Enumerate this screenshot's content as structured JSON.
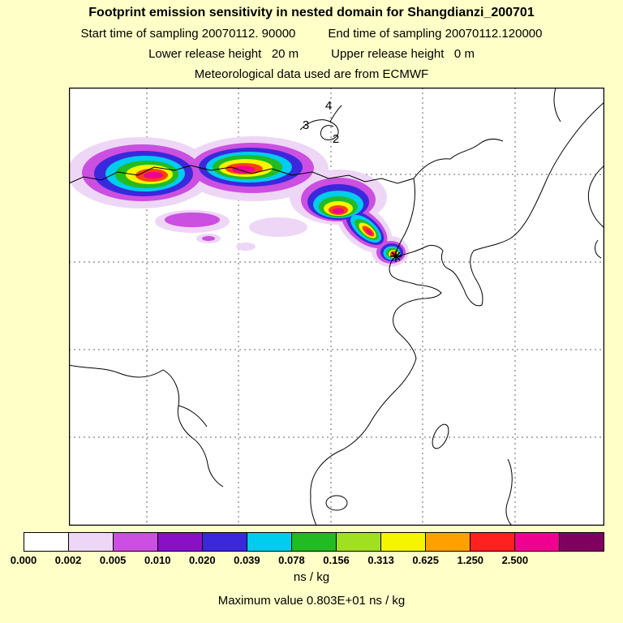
{
  "header": {
    "title": "Footprint emission sensitivity in nested domain for Shangdianzi_200701",
    "line2_left": "Start time of sampling 20070112. 90000",
    "line2_right": "End time of sampling 20070112.120000",
    "line3_left": "Lower release height   20 m",
    "line3_right": "Upper release height   0 m",
    "line4": "Meteorological data used are from ECMWF"
  },
  "map": {
    "annotations": [
      {
        "label": "4"
      },
      {
        "label": "3"
      },
      {
        "label": "2"
      }
    ],
    "marker": "receptor-star"
  },
  "colorbar": {
    "colors": [
      "#ffffff",
      "#eed6f6",
      "#cb4fe0",
      "#8a10c8",
      "#3a28dc",
      "#00ccee",
      "#22bb22",
      "#a0e020",
      "#f5f500",
      "#ffa000",
      "#ff2020",
      "#f00090",
      "#800060"
    ],
    "tick_labels": [
      "0.000",
      "0.002",
      "0.005",
      "0.010",
      "0.020",
      "0.039",
      "0.078",
      "0.156",
      "0.313",
      "0.625",
      "1.250",
      "2.500"
    ],
    "unit": "ns / kg"
  },
  "footer": {
    "max_value": "Maximum value  0.803E+01 ns / kg"
  },
  "chart_data": {
    "type": "heatmap",
    "title": "Footprint emission sensitivity in nested domain for Shangdianzi_200701",
    "station": "Shangdianzi_200701",
    "sampling_start": "20070112. 90000",
    "sampling_end": "20070112.120000",
    "lower_release_height": "20 m",
    "upper_release_height": "0 m",
    "meteorological_data": "ECMWF",
    "units": "ns / kg",
    "maximum_value": "0.803E+01 ns / kg",
    "colorbar_levels": [
      0.0,
      0.002,
      0.005,
      0.01,
      0.02,
      0.039,
      0.078,
      0.156,
      0.313,
      0.625,
      1.25,
      2.5
    ],
    "colorbar_colors": [
      "#ffffff",
      "#eed6f6",
      "#cb4fe0",
      "#8a10c8",
      "#3a28dc",
      "#00ccee",
      "#22bb22",
      "#a0e020",
      "#f5f500",
      "#ffa000",
      "#ff2020",
      "#f00090",
      "#800060"
    ],
    "legend_position": "bottom",
    "grid": true,
    "trajectory_point_labels": [
      "2",
      "3",
      "4"
    ],
    "plume_note": "Sensitivity plume extends west-northwest from receptor star on the Bohai coast across northern China and Mongolia; narrow high-value (yellow/red/magenta) ridge inside broader cyan/blue/violet envelope"
  }
}
